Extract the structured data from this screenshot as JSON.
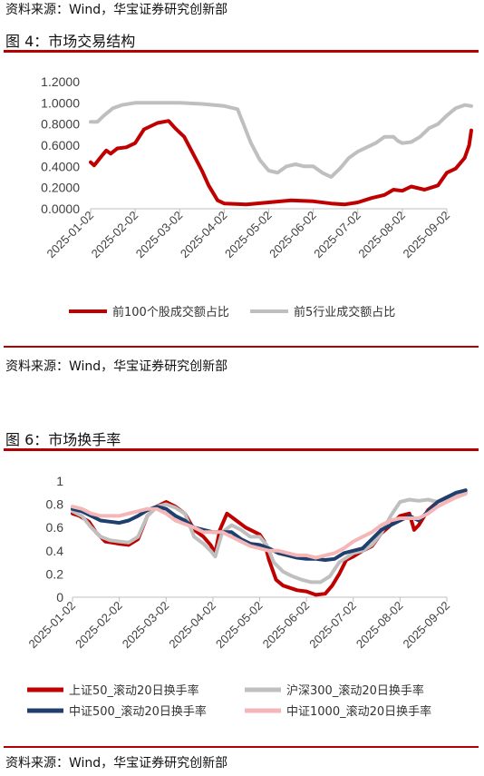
{
  "top_source": "资料来源：Wind，华宝证券研究创新部",
  "figures": [
    {
      "title": "图 4：市场交易结构",
      "source": "资料来源：Wind，华宝证券研究创新部"
    },
    {
      "title": "图 6：市场换手率",
      "source": "资料来源：Wind，华宝证券研究创新部"
    }
  ],
  "chart_data": [
    {
      "type": "line",
      "title": "",
      "xlabel": "",
      "ylabel": "",
      "x_ticks": [
        "2025-01-02",
        "2025-02-02",
        "2025-03-02",
        "2025-04-02",
        "2025-05-02",
        "2025-06-02",
        "2025-07-02",
        "2025-08-02",
        "2025-09-02"
      ],
      "y_ticks": [
        "0.0000",
        "0.2000",
        "0.4000",
        "0.6000",
        "0.8000",
        "1.0000",
        "1.2000"
      ],
      "ylim": [
        0,
        1.2
      ],
      "grid": false,
      "legend": "bottom",
      "series": [
        {
          "name": "前100个股成交额占比",
          "color": "#c00000",
          "points": [
            [
              0,
              0.44
            ],
            [
              0.08,
              0.41
            ],
            [
              0.25,
              0.5
            ],
            [
              0.35,
              0.55
            ],
            [
              0.45,
              0.52
            ],
            [
              0.6,
              0.57
            ],
            [
              0.8,
              0.58
            ],
            [
              1.0,
              0.62
            ],
            [
              1.2,
              0.75
            ],
            [
              1.5,
              0.81
            ],
            [
              1.75,
              0.83
            ],
            [
              1.9,
              0.76
            ],
            [
              2.1,
              0.68
            ],
            [
              2.3,
              0.52
            ],
            [
              2.5,
              0.36
            ],
            [
              2.65,
              0.22
            ],
            [
              2.85,
              0.08
            ],
            [
              3.0,
              0.05
            ],
            [
              3.5,
              0.04
            ],
            [
              4.0,
              0.06
            ],
            [
              4.5,
              0.08
            ],
            [
              5.0,
              0.07
            ],
            [
              5.4,
              0.05
            ],
            [
              5.7,
              0.04
            ],
            [
              6.0,
              0.06
            ],
            [
              6.3,
              0.1
            ],
            [
              6.6,
              0.13
            ],
            [
              6.8,
              0.18
            ],
            [
              7.0,
              0.17
            ],
            [
              7.2,
              0.21
            ],
            [
              7.5,
              0.18
            ],
            [
              7.8,
              0.22
            ],
            [
              8.0,
              0.34
            ],
            [
              8.2,
              0.38
            ],
            [
              8.4,
              0.48
            ],
            [
              8.5,
              0.6
            ],
            [
              8.55,
              0.74
            ]
          ]
        },
        {
          "name": "前5行业成交额占比",
          "color": "#bfbfbf",
          "points": [
            [
              0,
              0.82
            ],
            [
              0.15,
              0.82
            ],
            [
              0.3,
              0.88
            ],
            [
              0.5,
              0.95
            ],
            [
              0.7,
              0.98
            ],
            [
              1.0,
              1.0
            ],
            [
              1.5,
              1.0
            ],
            [
              2.0,
              1.0
            ],
            [
              2.5,
              0.99
            ],
            [
              3.0,
              0.97
            ],
            [
              3.3,
              0.94
            ],
            [
              3.6,
              0.62
            ],
            [
              3.8,
              0.46
            ],
            [
              4.0,
              0.36
            ],
            [
              4.2,
              0.34
            ],
            [
              4.4,
              0.4
            ],
            [
              4.6,
              0.42
            ],
            [
              4.8,
              0.4
            ],
            [
              5.0,
              0.4
            ],
            [
              5.2,
              0.34
            ],
            [
              5.4,
              0.3
            ],
            [
              5.6,
              0.38
            ],
            [
              5.8,
              0.48
            ],
            [
              6.0,
              0.54
            ],
            [
              6.2,
              0.58
            ],
            [
              6.4,
              0.62
            ],
            [
              6.6,
              0.68
            ],
            [
              6.8,
              0.68
            ],
            [
              6.9,
              0.64
            ],
            [
              7.0,
              0.62
            ],
            [
              7.2,
              0.63
            ],
            [
              7.4,
              0.68
            ],
            [
              7.6,
              0.76
            ],
            [
              7.8,
              0.8
            ],
            [
              8.0,
              0.88
            ],
            [
              8.2,
              0.95
            ],
            [
              8.4,
              0.98
            ],
            [
              8.55,
              0.97
            ]
          ]
        }
      ]
    },
    {
      "type": "line",
      "title": "",
      "xlabel": "",
      "ylabel": "",
      "x_ticks": [
        "2025-01-02",
        "2025-02-02",
        "2025-03-02",
        "2025-04-02",
        "2025-05-02",
        "2025-06-02",
        "2025-07-02",
        "2025-08-02",
        "2025-09-02"
      ],
      "y_ticks": [
        "0",
        "0.2",
        "0.4",
        "0.6",
        "0.8",
        "1"
      ],
      "ylim": [
        0,
        1
      ],
      "grid": false,
      "legend": "bottom",
      "series": [
        {
          "name": "上证50_滚动20日换手率",
          "color": "#c00000",
          "points": [
            [
              0,
              0.72
            ],
            [
              0.15,
              0.7
            ],
            [
              0.35,
              0.65
            ],
            [
              0.5,
              0.56
            ],
            [
              0.7,
              0.48
            ],
            [
              1.0,
              0.46
            ],
            [
              1.2,
              0.45
            ],
            [
              1.4,
              0.5
            ],
            [
              1.6,
              0.7
            ],
            [
              1.8,
              0.78
            ],
            [
              2.0,
              0.82
            ],
            [
              2.2,
              0.78
            ],
            [
              2.4,
              0.72
            ],
            [
              2.6,
              0.58
            ],
            [
              2.8,
              0.52
            ],
            [
              2.95,
              0.45
            ],
            [
              3.05,
              0.38
            ],
            [
              3.15,
              0.58
            ],
            [
              3.3,
              0.72
            ],
            [
              3.5,
              0.66
            ],
            [
              3.7,
              0.6
            ],
            [
              3.9,
              0.56
            ],
            [
              4.0,
              0.54
            ],
            [
              4.1,
              0.48
            ],
            [
              4.2,
              0.32
            ],
            [
              4.35,
              0.15
            ],
            [
              4.5,
              0.1
            ],
            [
              4.8,
              0.06
            ],
            [
              5.0,
              0.05
            ],
            [
              5.2,
              0.02
            ],
            [
              5.4,
              0.03
            ],
            [
              5.55,
              0.1
            ],
            [
              5.7,
              0.2
            ],
            [
              5.85,
              0.32
            ],
            [
              6.0,
              0.35
            ],
            [
              6.2,
              0.4
            ],
            [
              6.4,
              0.44
            ],
            [
              6.6,
              0.55
            ],
            [
              6.8,
              0.62
            ],
            [
              7.0,
              0.7
            ],
            [
              7.2,
              0.72
            ],
            [
              7.3,
              0.58
            ],
            [
              7.4,
              0.62
            ],
            [
              7.6,
              0.75
            ],
            [
              7.8,
              0.82
            ],
            [
              8.0,
              0.86
            ],
            [
              8.2,
              0.88
            ],
            [
              8.4,
              0.9
            ]
          ]
        },
        {
          "name": "沪深300_滚动20日换手率",
          "color": "#bfbfbf",
          "points": [
            [
              0,
              0.74
            ],
            [
              0.2,
              0.7
            ],
            [
              0.4,
              0.6
            ],
            [
              0.6,
              0.52
            ],
            [
              0.8,
              0.49
            ],
            [
              1.0,
              0.48
            ],
            [
              1.2,
              0.47
            ],
            [
              1.4,
              0.52
            ],
            [
              1.6,
              0.7
            ],
            [
              1.8,
              0.78
            ],
            [
              2.0,
              0.8
            ],
            [
              2.2,
              0.77
            ],
            [
              2.4,
              0.72
            ],
            [
              2.6,
              0.52
            ],
            [
              2.8,
              0.46
            ],
            [
              2.95,
              0.4
            ],
            [
              3.05,
              0.35
            ],
            [
              3.2,
              0.56
            ],
            [
              3.4,
              0.62
            ],
            [
              3.6,
              0.58
            ],
            [
              3.8,
              0.52
            ],
            [
              4.0,
              0.52
            ],
            [
              4.15,
              0.45
            ],
            [
              4.3,
              0.3
            ],
            [
              4.5,
              0.22
            ],
            [
              4.7,
              0.18
            ],
            [
              4.9,
              0.15
            ],
            [
              5.1,
              0.13
            ],
            [
              5.3,
              0.13
            ],
            [
              5.5,
              0.18
            ],
            [
              5.7,
              0.3
            ],
            [
              6.0,
              0.38
            ],
            [
              6.2,
              0.4
            ],
            [
              6.4,
              0.45
            ],
            [
              6.6,
              0.55
            ],
            [
              6.8,
              0.7
            ],
            [
              7.0,
              0.82
            ],
            [
              7.2,
              0.84
            ],
            [
              7.4,
              0.83
            ],
            [
              7.6,
              0.84
            ],
            [
              7.8,
              0.82
            ],
            [
              8.0,
              0.85
            ],
            [
              8.2,
              0.88
            ],
            [
              8.4,
              0.9
            ]
          ]
        },
        {
          "name": "中证500_滚动20日换手率",
          "color": "#1f3f6e",
          "points": [
            [
              0,
              0.76
            ],
            [
              0.2,
              0.74
            ],
            [
              0.4,
              0.7
            ],
            [
              0.6,
              0.66
            ],
            [
              0.8,
              0.65
            ],
            [
              1.0,
              0.64
            ],
            [
              1.2,
              0.66
            ],
            [
              1.4,
              0.7
            ],
            [
              1.6,
              0.75
            ],
            [
              1.8,
              0.78
            ],
            [
              2.0,
              0.76
            ],
            [
              2.2,
              0.7
            ],
            [
              2.4,
              0.66
            ],
            [
              2.6,
              0.6
            ],
            [
              2.8,
              0.58
            ],
            [
              3.0,
              0.56
            ],
            [
              3.2,
              0.56
            ],
            [
              3.4,
              0.56
            ],
            [
              3.6,
              0.5
            ],
            [
              3.8,
              0.46
            ],
            [
              4.0,
              0.45
            ],
            [
              4.2,
              0.42
            ],
            [
              4.4,
              0.38
            ],
            [
              4.6,
              0.36
            ],
            [
              4.8,
              0.34
            ],
            [
              5.0,
              0.33
            ],
            [
              5.2,
              0.33
            ],
            [
              5.4,
              0.32
            ],
            [
              5.6,
              0.33
            ],
            [
              5.8,
              0.38
            ],
            [
              6.0,
              0.4
            ],
            [
              6.2,
              0.42
            ],
            [
              6.4,
              0.5
            ],
            [
              6.6,
              0.58
            ],
            [
              6.8,
              0.62
            ],
            [
              7.0,
              0.66
            ],
            [
              7.2,
              0.7
            ],
            [
              7.4,
              0.66
            ],
            [
              7.6,
              0.74
            ],
            [
              7.8,
              0.82
            ],
            [
              8.0,
              0.86
            ],
            [
              8.2,
              0.9
            ],
            [
              8.4,
              0.92
            ]
          ]
        },
        {
          "name": "中证1000_滚动20日换手率",
          "color": "#f4b6b6",
          "points": [
            [
              0,
              0.78
            ],
            [
              0.2,
              0.76
            ],
            [
              0.4,
              0.72
            ],
            [
              0.6,
              0.7
            ],
            [
              0.8,
              0.7
            ],
            [
              1.0,
              0.7
            ],
            [
              1.2,
              0.72
            ],
            [
              1.4,
              0.74
            ],
            [
              1.6,
              0.76
            ],
            [
              1.8,
              0.76
            ],
            [
              2.0,
              0.72
            ],
            [
              2.2,
              0.66
            ],
            [
              2.4,
              0.63
            ],
            [
              2.6,
              0.6
            ],
            [
              2.8,
              0.56
            ],
            [
              3.0,
              0.56
            ],
            [
              3.2,
              0.56
            ],
            [
              3.4,
              0.52
            ],
            [
              3.6,
              0.48
            ],
            [
              3.8,
              0.44
            ],
            [
              4.0,
              0.42
            ],
            [
              4.2,
              0.4
            ],
            [
              4.4,
              0.4
            ],
            [
              4.6,
              0.38
            ],
            [
              4.8,
              0.36
            ],
            [
              5.0,
              0.36
            ],
            [
              5.2,
              0.34
            ],
            [
              5.4,
              0.36
            ],
            [
              5.6,
              0.38
            ],
            [
              5.8,
              0.42
            ],
            [
              6.0,
              0.48
            ],
            [
              6.2,
              0.52
            ],
            [
              6.4,
              0.56
            ],
            [
              6.6,
              0.62
            ],
            [
              6.8,
              0.66
            ],
            [
              7.0,
              0.68
            ],
            [
              7.2,
              0.68
            ],
            [
              7.4,
              0.68
            ],
            [
              7.6,
              0.72
            ],
            [
              7.8,
              0.78
            ],
            [
              8.0,
              0.82
            ],
            [
              8.2,
              0.86
            ],
            [
              8.4,
              0.89
            ]
          ]
        }
      ]
    }
  ]
}
